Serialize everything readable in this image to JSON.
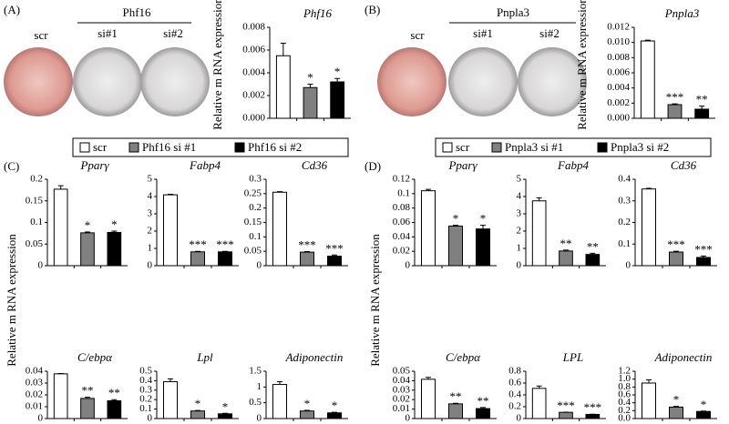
{
  "panels": [
    {
      "label": "(A)",
      "group_label": "Phf16",
      "dish_labels": [
        "scr",
        "si#1",
        "si#2"
      ]
    },
    {
      "label": "(B)",
      "group_label": "Pnpla3",
      "dish_labels": [
        "scr",
        "si#1",
        "si#2"
      ]
    },
    {
      "label": "(C)"
    },
    {
      "label": "(D)"
    }
  ],
  "legends": [
    {
      "entries": [
        {
          "name": "scr",
          "color": "#ffffff"
        },
        {
          "name": "Phf16 si #1",
          "color": "#808080"
        },
        {
          "name": "Phf16 si #2",
          "color": "#000000"
        }
      ]
    },
    {
      "entries": [
        {
          "name": "scr",
          "color": "#ffffff"
        },
        {
          "name": "Pnpla3 si #1",
          "color": "#808080"
        },
        {
          "name": "Pnpla3 si #2",
          "color": "#000000"
        }
      ]
    }
  ],
  "chart_data": [
    {
      "type": "bar",
      "title": "Phf16",
      "ylabel": "Relative m RNA expression",
      "values": [
        0.0055,
        0.0027,
        0.0032
      ],
      "errors": [
        0.0011,
        0.0003,
        0.0003
      ],
      "annotations": [
        null,
        "*",
        "*"
      ],
      "colors": [
        "#ffffff",
        "#808080",
        "#000000"
      ],
      "ylim": [
        0,
        0.008
      ],
      "yticks": [
        {
          "value": 0,
          "label": "0.000"
        },
        {
          "value": 0.002,
          "label": "0.002"
        },
        {
          "value": 0.004,
          "label": "0.004"
        },
        {
          "value": 0.006,
          "label": "0.006"
        },
        {
          "value": 0.008,
          "label": "0.008"
        }
      ]
    },
    {
      "type": "bar",
      "title": "Pnpla3",
      "ylabel": "Relative m RNA expression",
      "values": [
        0.0102,
        0.0018,
        0.0012
      ],
      "errors": [
        0.0001,
        0.0001,
        0.0004
      ],
      "annotations": [
        null,
        "***",
        "**"
      ],
      "colors": [
        "#ffffff",
        "#808080",
        "#000000"
      ],
      "ylim": [
        0,
        0.012
      ],
      "yticks": [
        {
          "value": 0,
          "label": "0.000"
        },
        {
          "value": 0.002,
          "label": "0.002"
        },
        {
          "value": 0.004,
          "label": "0.004"
        },
        {
          "value": 0.006,
          "label": "0.006"
        },
        {
          "value": 0.008,
          "label": "0.008"
        },
        {
          "value": 0.01,
          "label": "0.010"
        },
        {
          "value": 0.012,
          "label": "0.012"
        }
      ]
    },
    {
      "type": "bar",
      "title": "Pparγ",
      "ylabel": "Relative m RNA expression",
      "values": [
        0.177,
        0.076,
        0.077
      ],
      "errors": [
        0.008,
        0.002,
        0.003
      ],
      "annotations": [
        null,
        "*",
        "*"
      ],
      "colors": [
        "#ffffff",
        "#808080",
        "#000000"
      ],
      "ylim": [
        0,
        0.2
      ],
      "yticks": [
        0,
        0.05,
        0.1,
        0.15,
        0.2
      ]
    },
    {
      "type": "bar",
      "title": "Fabp4",
      "values": [
        4.1,
        0.8,
        0.8
      ],
      "errors": [
        0.03,
        0.03,
        0.03
      ],
      "annotations": [
        null,
        "***",
        "***"
      ],
      "colors": [
        "#ffffff",
        "#808080",
        "#000000"
      ],
      "ylim": [
        0,
        5
      ],
      "yticks": [
        0,
        1,
        2,
        3,
        4,
        5
      ]
    },
    {
      "type": "bar",
      "title": "Cd36",
      "values": [
        0.255,
        0.047,
        0.033
      ],
      "errors": [
        0.002,
        0.002,
        0.004
      ],
      "annotations": [
        null,
        "***",
        "***"
      ],
      "colors": [
        "#ffffff",
        "#808080",
        "#000000"
      ],
      "ylim": [
        0,
        0.3
      ],
      "yticks": [
        0,
        0.05,
        0.1,
        0.15,
        0.2,
        0.25,
        0.3
      ]
    },
    {
      "type": "bar",
      "title": "C/ebpα",
      "values": [
        0.0378,
        0.017,
        0.015
      ],
      "errors": [
        0.0003,
        0.001,
        0.001
      ],
      "annotations": [
        null,
        "**",
        "**"
      ],
      "colors": [
        "#ffffff",
        "#808080",
        "#000000"
      ],
      "ylim": [
        0,
        0.04
      ],
      "yticks": [
        0,
        0.01,
        0.02,
        0.03,
        0.04
      ]
    },
    {
      "type": "bar",
      "title": "Lpl",
      "values": [
        0.39,
        0.08,
        0.05
      ],
      "errors": [
        0.03,
        0.005,
        0.005
      ],
      "annotations": [
        null,
        "*",
        "*"
      ],
      "colors": [
        "#ffffff",
        "#808080",
        "#000000"
      ],
      "ylim": [
        0,
        0.5
      ],
      "yticks": [
        0,
        0.1,
        0.2,
        0.3,
        0.4,
        0.5
      ]
    },
    {
      "type": "bar",
      "title": "Adiponectin",
      "values": [
        1.08,
        0.24,
        0.18
      ],
      "errors": [
        0.09,
        0.02,
        0.02
      ],
      "annotations": [
        null,
        "*",
        "*"
      ],
      "colors": [
        "#ffffff",
        "#808080",
        "#000000"
      ],
      "ylim": [
        0,
        1.5
      ],
      "yticks": [
        0,
        0.5,
        1,
        1.5
      ]
    },
    {
      "type": "bar",
      "title": "Pparγ",
      "ylabel": "Relative m RNA expression",
      "values": [
        0.104,
        0.055,
        0.051
      ],
      "errors": [
        0.002,
        0.001,
        0.005
      ],
      "annotations": [
        null,
        "*",
        "*"
      ],
      "colors": [
        "#ffffff",
        "#808080",
        "#000000"
      ],
      "ylim": [
        0,
        0.12
      ],
      "yticks": [
        0,
        0.02,
        0.04,
        0.06,
        0.08,
        0.1,
        0.12
      ]
    },
    {
      "type": "bar",
      "title": "Fabp4",
      "values": [
        3.75,
        0.85,
        0.65
      ],
      "errors": [
        0.18,
        0.05,
        0.07
      ],
      "annotations": [
        null,
        "**",
        "**"
      ],
      "colors": [
        "#ffffff",
        "#808080",
        "#000000"
      ],
      "ylim": [
        0,
        5
      ],
      "yticks": [
        0,
        1,
        2,
        3,
        4,
        5
      ]
    },
    {
      "type": "bar",
      "title": "Cd36",
      "values": [
        0.355,
        0.063,
        0.038
      ],
      "errors": [
        0.003,
        0.004,
        0.007
      ],
      "annotations": [
        null,
        "***",
        "***"
      ],
      "colors": [
        "#ffffff",
        "#808080",
        "#000000"
      ],
      "ylim": [
        0,
        0.4
      ],
      "yticks": [
        0,
        0.1,
        0.2,
        0.3,
        0.4
      ]
    },
    {
      "type": "bar",
      "title": "C/ebpα",
      "values": [
        0.0415,
        0.0155,
        0.0105
      ],
      "errors": [
        0.002,
        0.0006,
        0.0012
      ],
      "annotations": [
        null,
        "**",
        "**"
      ],
      "colors": [
        "#ffffff",
        "#808080",
        "#000000"
      ],
      "ylim": [
        0,
        0.05
      ],
      "yticks": [
        0,
        0.01,
        0.02,
        0.03,
        0.04,
        0.05
      ]
    },
    {
      "type": "bar",
      "title": "LPL",
      "values": [
        0.51,
        0.105,
        0.07
      ],
      "errors": [
        0.04,
        0.003,
        0.003
      ],
      "annotations": [
        null,
        "***",
        "***"
      ],
      "colors": [
        "#ffffff",
        "#808080",
        "#000000"
      ],
      "ylim": [
        0,
        0.8
      ],
      "yticks": [
        0,
        0.2,
        0.4,
        0.6,
        0.8
      ]
    },
    {
      "type": "bar",
      "title": "Adiponectin",
      "values": [
        0.9,
        0.29,
        0.18
      ],
      "errors": [
        0.08,
        0.02,
        0.01
      ],
      "annotations": [
        null,
        "*",
        "*"
      ],
      "colors": [
        "#ffffff",
        "#808080",
        "#000000"
      ],
      "ylim": [
        0,
        1.2
      ],
      "yticks": [
        {
          "value": 0,
          "label": "0.0"
        },
        0.2,
        0.4,
        0.6,
        0.8,
        {
          "value": 1,
          "label": "1.0"
        },
        1.2
      ]
    }
  ]
}
